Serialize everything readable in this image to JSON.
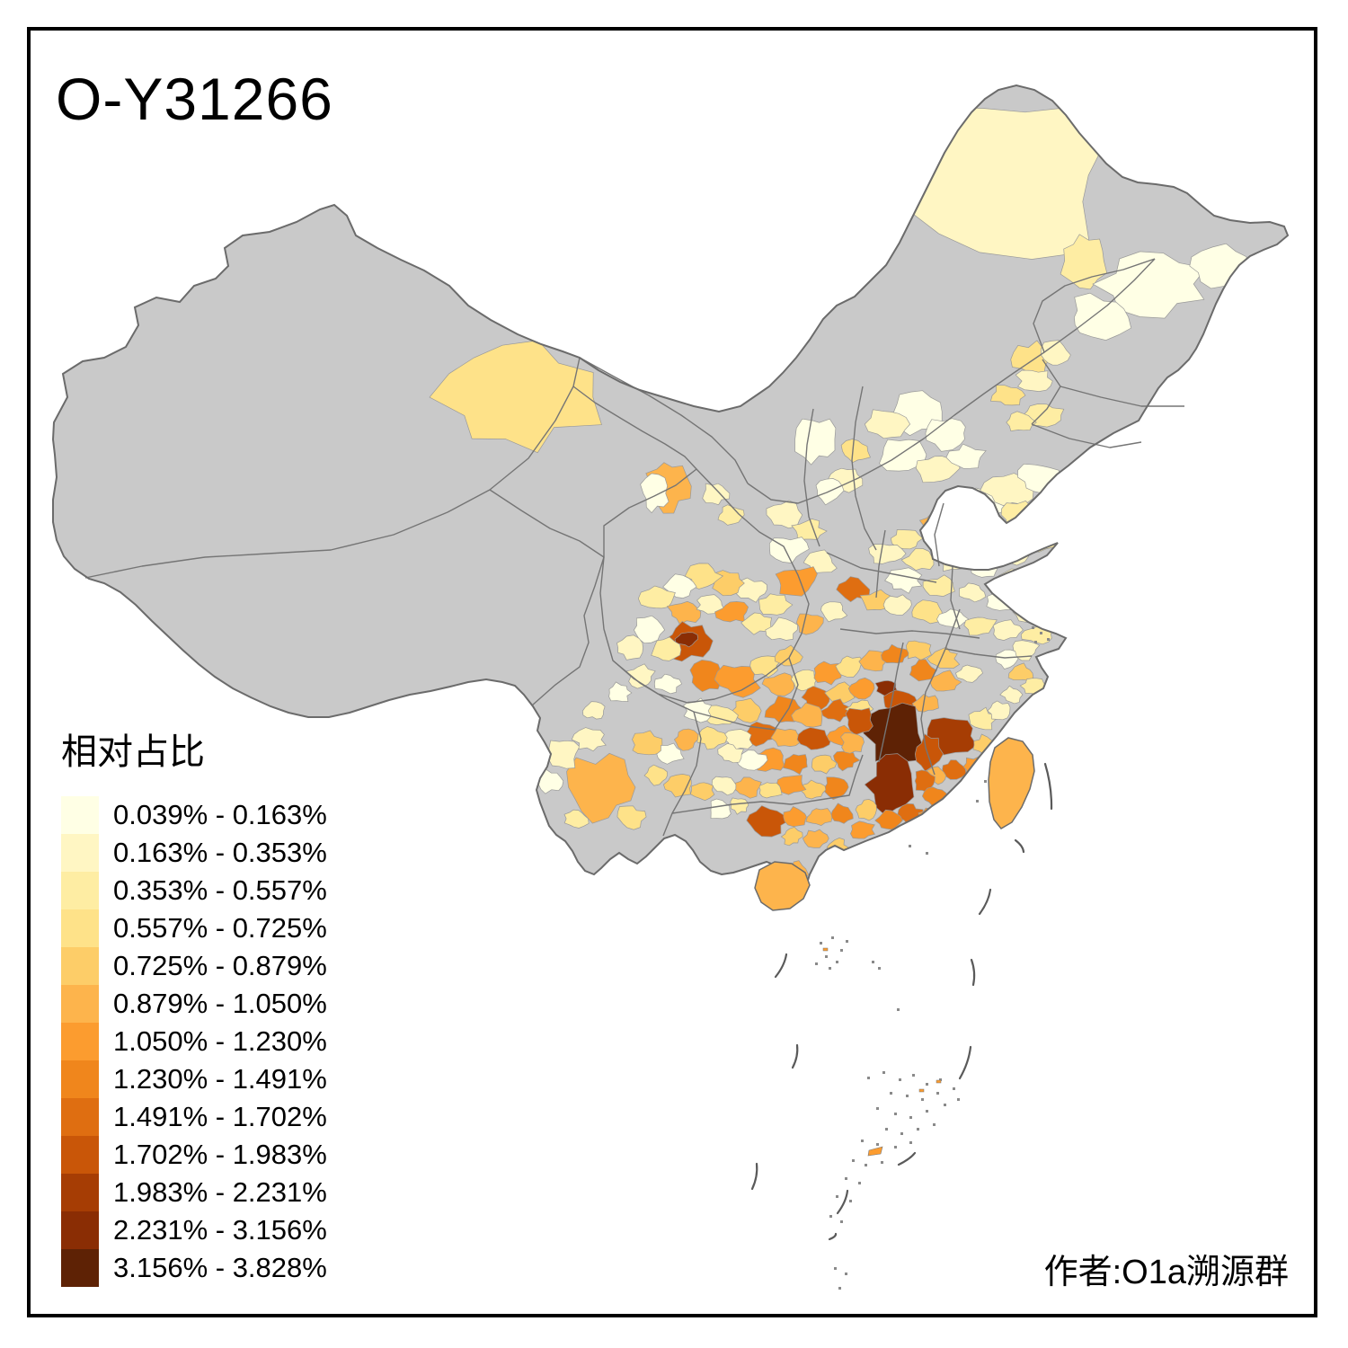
{
  "title": "O-Y31266",
  "attribution": "作者:O1a溯源群",
  "legend": {
    "title": "相对占比",
    "items": [
      {
        "label": "0.039% - 0.163%",
        "color": "#FFFFE5"
      },
      {
        "label": "0.163% - 0.353%",
        "color": "#FFF6C3"
      },
      {
        "label": "0.353% - 0.557%",
        "color": "#FEEDA3"
      },
      {
        "label": "0.557% - 0.725%",
        "color": "#FEE289"
      },
      {
        "label": "0.725% - 0.879%",
        "color": "#FDCD68"
      },
      {
        "label": "0.879% - 1.050%",
        "color": "#FDB44C"
      },
      {
        "label": "1.050% - 1.230%",
        "color": "#FC9C2F"
      },
      {
        "label": "1.230% - 1.491%",
        "color": "#F0861C"
      },
      {
        "label": "1.491% - 1.702%",
        "color": "#DF6E11"
      },
      {
        "label": "1.702% - 1.983%",
        "color": "#C95608"
      },
      {
        "label": "1.983% - 2.231%",
        "color": "#A63D04"
      },
      {
        "label": "2.231% - 3.156%",
        "color": "#8A2D04"
      },
      {
        "label": "3.156% - 3.828%",
        "color": "#5E2205"
      }
    ]
  },
  "map": {
    "no_data_color": "#C9C9C9",
    "prefecture_border_color": "#999999",
    "province_border_color": "#757575",
    "outline_color": "#6B6B6B",
    "sea_color": "#FFFFFF",
    "frame_color": "#000000"
  },
  "chart_data": {
    "type": "choropleth-map",
    "region": "China (prefecture level)",
    "measure": "相对占比",
    "class_breaks_percent": [
      0.039,
      0.163,
      0.353,
      0.557,
      0.725,
      0.879,
      1.05,
      1.23,
      1.491,
      1.702,
      1.983,
      2.231,
      3.156,
      3.828
    ],
    "palette": [
      "#FFFFE5",
      "#FFF6C3",
      "#FEEDA3",
      "#FEE289",
      "#FDCD68",
      "#FDB44C",
      "#FC9C2F",
      "#F0861C",
      "#DF6E11",
      "#C95608",
      "#A63D04",
      "#8A2D04",
      "#5E2205"
    ],
    "no_data_color": "#C9C9C9",
    "legend_position": "bottom-left",
    "notes": "Darkest classes concentrated in SE China (Jiangxi/Guangdong border); west and north mostly no-data gray; Taiwan and Hainan in 0.879%-1.050% class."
  }
}
